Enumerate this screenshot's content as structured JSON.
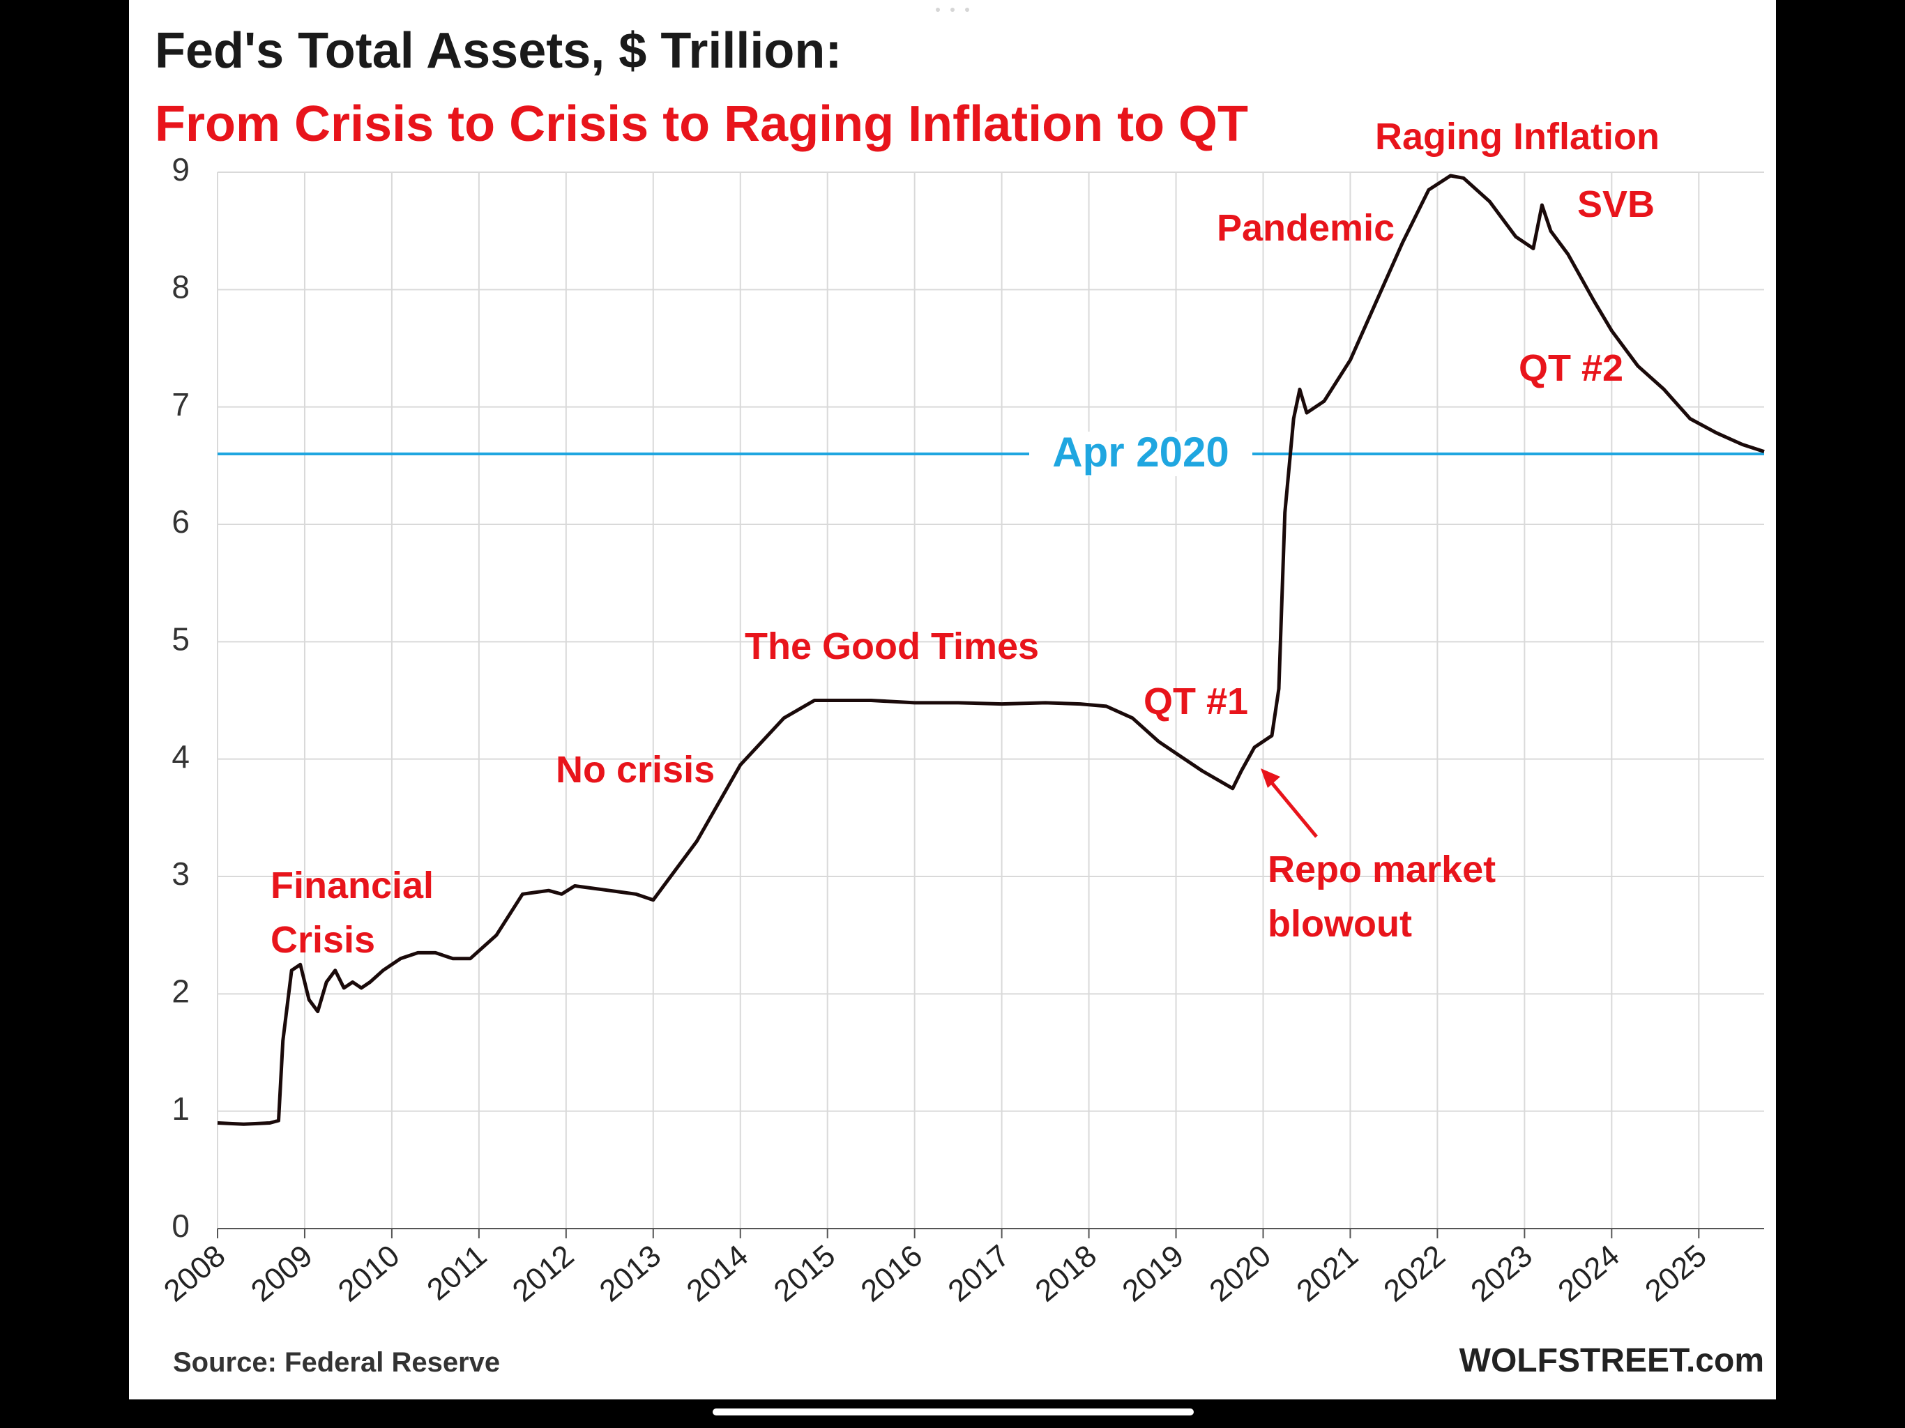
{
  "colors": {
    "series": "#1a0a0a",
    "annotation": "#e8141b",
    "reference": "#1fa6e0",
    "grid": "#d9d9d9",
    "background": "#ffffff",
    "frame": "#000000"
  },
  "chart_data": {
    "type": "line",
    "title": "Fed's Total Assets, $ Trillion:",
    "subtitle": "From Crisis to Crisis to Raging Inflation to QT",
    "ylim": [
      0,
      9
    ],
    "xlim": [
      2008,
      2025.75
    ],
    "yticks": [
      "0",
      "1",
      "2",
      "3",
      "4",
      "5",
      "6",
      "7",
      "8",
      "9"
    ],
    "xticks": [
      "2008",
      "2009",
      "2010",
      "2011",
      "2012",
      "2013",
      "2014",
      "2015",
      "2016",
      "2017",
      "2018",
      "2019",
      "2020",
      "2021",
      "2022",
      "2023",
      "2024",
      "2025"
    ],
    "grid": true,
    "series": [
      {
        "x": [
          2008.0,
          2008.3,
          2008.6,
          2008.7,
          2008.75,
          2008.85,
          2008.95,
          2009.05,
          2009.15,
          2009.25,
          2009.35,
          2009.45,
          2009.55,
          2009.65,
          2009.75,
          2009.9,
          2010.1,
          2010.3,
          2010.5,
          2010.7,
          2010.9,
          2011.2,
          2011.5,
          2011.8,
          2011.95,
          2012.1,
          2012.5,
          2012.8,
          2013.0,
          2013.5,
          2014.0,
          2014.5,
          2014.85,
          2015.0,
          2015.5,
          2016.0,
          2016.5,
          2017.0,
          2017.5,
          2017.9,
          2018.2,
          2018.5,
          2018.8,
          2019.0,
          2019.3,
          2019.65,
          2019.75,
          2019.9,
          2020.1,
          2020.18,
          2020.25,
          2020.35,
          2020.42,
          2020.5,
          2020.7,
          2021.0,
          2021.3,
          2021.6,
          2021.9,
          2022.15,
          2022.3,
          2022.6,
          2022.9,
          2023.1,
          2023.2,
          2023.3,
          2023.5,
          2023.8,
          2024.0,
          2024.3,
          2024.6,
          2024.9,
          2025.2,
          2025.5,
          2025.75
        ],
        "y": [
          0.9,
          0.89,
          0.9,
          0.92,
          1.6,
          2.2,
          2.25,
          1.95,
          1.85,
          2.1,
          2.2,
          2.05,
          2.1,
          2.05,
          2.1,
          2.2,
          2.3,
          2.35,
          2.35,
          2.3,
          2.3,
          2.5,
          2.85,
          2.88,
          2.85,
          2.92,
          2.88,
          2.85,
          2.8,
          3.3,
          3.95,
          4.35,
          4.5,
          4.5,
          4.5,
          4.48,
          4.48,
          4.47,
          4.48,
          4.47,
          4.45,
          4.35,
          4.15,
          4.05,
          3.9,
          3.75,
          3.9,
          4.1,
          4.2,
          4.6,
          6.1,
          6.9,
          7.15,
          6.95,
          7.05,
          7.4,
          7.9,
          8.4,
          8.85,
          8.97,
          8.95,
          8.75,
          8.45,
          8.35,
          8.72,
          8.5,
          8.3,
          7.9,
          7.65,
          7.35,
          7.15,
          6.9,
          6.78,
          6.68,
          6.62
        ]
      }
    ],
    "reference_line": {
      "y": 6.6,
      "label": "Apr 2020"
    },
    "annotations": {
      "financial_crisis_1": "Financial",
      "financial_crisis_2": "Crisis",
      "no_crisis": "No crisis",
      "good_times": "The Good Times",
      "qt1": "QT #1",
      "repo_1": "Repo market",
      "repo_2": "blowout",
      "pandemic": "Pandemic",
      "raging_inflation": "Raging  Inflation",
      "svb": "SVB",
      "qt2": "QT #2"
    },
    "source": "Source: Federal Reserve",
    "credit": "WOLFSTREET.com"
  }
}
